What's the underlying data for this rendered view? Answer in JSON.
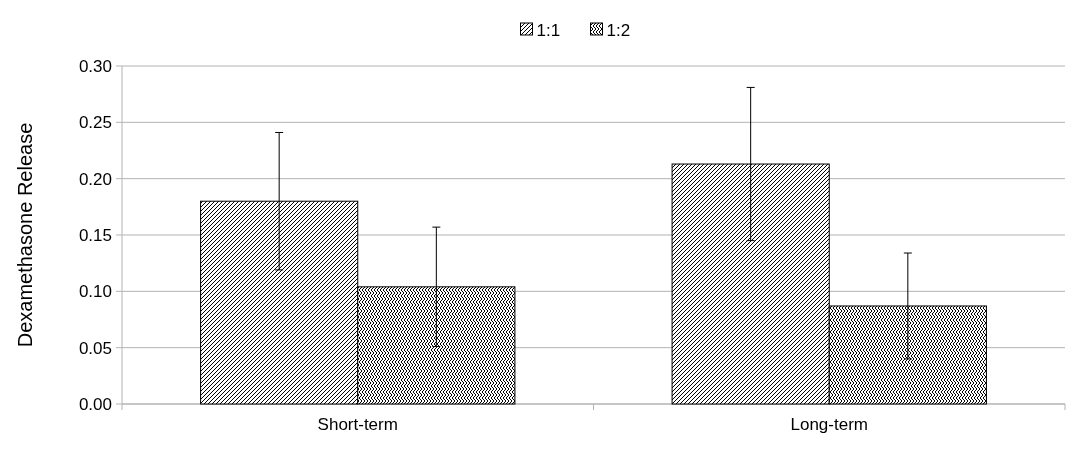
{
  "chart_data": {
    "type": "bar",
    "ylabel": "Dexamethasone Release",
    "categories": [
      "Short-term",
      "Long-term"
    ],
    "series": [
      {
        "name": "1:1",
        "color": "#000000",
        "values": [
          0.18,
          0.213
        ],
        "errors": [
          0.061,
          0.068
        ]
      },
      {
        "name": "1:2",
        "color": "#000000",
        "values": [
          0.104,
          0.087
        ],
        "errors": [
          0.053,
          0.047
        ]
      }
    ],
    "ylim": [
      0,
      0.3
    ],
    "yticks": [
      {
        "value": 0,
        "label": "0.00"
      },
      {
        "value": 0.05,
        "label": "0.05"
      },
      {
        "value": 0.1,
        "label": "0.10"
      },
      {
        "value": 0.15,
        "label": "0.15"
      },
      {
        "value": 0.2,
        "label": "0.20"
      },
      {
        "value": 0.25,
        "label": "0.25"
      },
      {
        "value": 0.3,
        "label": "0.30"
      }
    ],
    "grid": "y",
    "legend": "top"
  }
}
